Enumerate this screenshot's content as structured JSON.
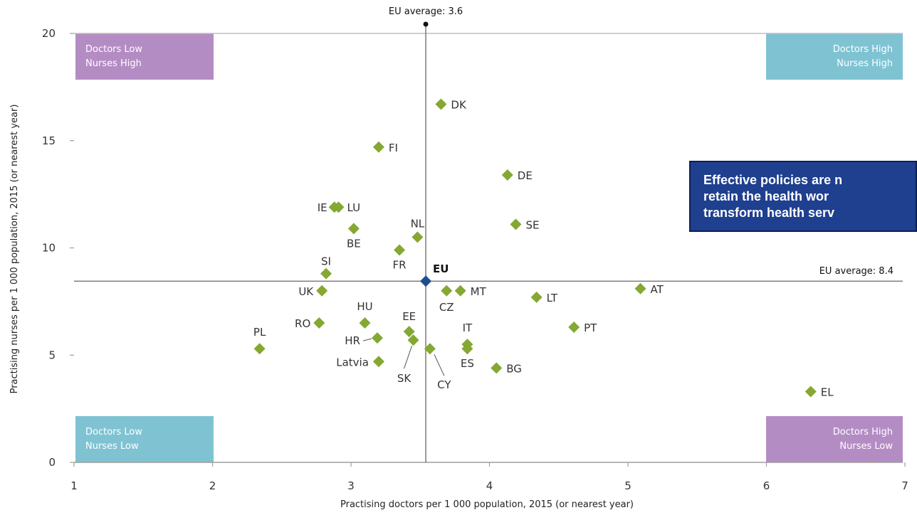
{
  "chart_data": {
    "type": "scatter",
    "xlabel": "Practising doctors per 1 000 population, 2015 (or nearest year)",
    "ylabel": "Practising nurses per 1 000 population, 2015 (or nearest year)",
    "xlim": [
      1,
      7
    ],
    "ylim": [
      0,
      20
    ],
    "x_ticks": [
      "1",
      "2",
      "3",
      "4",
      "5",
      "6",
      "7"
    ],
    "y_ticks": [
      "0",
      "5",
      "10",
      "15",
      "20"
    ],
    "grid": false,
    "eu_average_doctors": {
      "value": 3.6,
      "label": "EU average: 3.6"
    },
    "eu_average_nurses": {
      "value": 8.4,
      "label": "EU average: 8.4"
    },
    "eu_point": {
      "label": "EU",
      "x": 3.54,
      "y": 8.45,
      "color": "#1f4e8f"
    },
    "point_color": "#84a832",
    "points": [
      {
        "label": "DK",
        "x": 3.65,
        "y": 16.7
      },
      {
        "label": "FI",
        "x": 3.2,
        "y": 14.7
      },
      {
        "label": "DE",
        "x": 4.13,
        "y": 13.4
      },
      {
        "label": "IE",
        "x": 2.88,
        "y": 11.9
      },
      {
        "label": "LU",
        "x": 2.91,
        "y": 11.9
      },
      {
        "label": "SE",
        "x": 4.19,
        "y": 11.1
      },
      {
        "label": "BE",
        "x": 3.02,
        "y": 10.9
      },
      {
        "label": "NL",
        "x": 3.48,
        "y": 10.5
      },
      {
        "label": "FR",
        "x": 3.35,
        "y": 9.9
      },
      {
        "label": "SI",
        "x": 2.82,
        "y": 8.8
      },
      {
        "label": "UK",
        "x": 2.79,
        "y": 8.0
      },
      {
        "label": "CZ",
        "x": 3.69,
        "y": 8.0
      },
      {
        "label": "MT",
        "x": 3.79,
        "y": 8.0
      },
      {
        "label": "AT",
        "x": 5.09,
        "y": 8.1
      },
      {
        "label": "LT",
        "x": 4.34,
        "y": 7.7
      },
      {
        "label": "HU",
        "x": 3.1,
        "y": 6.5
      },
      {
        "label": "RO",
        "x": 2.77,
        "y": 6.5
      },
      {
        "label": "PT",
        "x": 4.61,
        "y": 6.3
      },
      {
        "label": "EE",
        "x": 3.42,
        "y": 6.1
      },
      {
        "label": "HR",
        "x": 3.19,
        "y": 5.8
      },
      {
        "label": "SK",
        "x": 3.45,
        "y": 5.7
      },
      {
        "label": "IT",
        "x": 3.84,
        "y": 5.5
      },
      {
        "label": "ES",
        "x": 3.84,
        "y": 5.3
      },
      {
        "label": "PL",
        "x": 2.34,
        "y": 5.3
      },
      {
        "label": "CY",
        "x": 3.57,
        "y": 5.3
      },
      {
        "label": "Latvia",
        "x": 3.2,
        "y": 4.7
      },
      {
        "label": "BG",
        "x": 4.05,
        "y": 4.4
      },
      {
        "label": "EL",
        "x": 6.32,
        "y": 3.3
      }
    ],
    "quadrants": [
      {
        "line1": "Doctors Low",
        "line2": "Nurses High",
        "color": "#b48cc4"
      },
      {
        "line1": "Doctors High",
        "line2": "Nurses High",
        "color": "#7fc3d3"
      },
      {
        "line1": "Doctors Low",
        "line2": "Nurses Low",
        "color": "#7fc3d3"
      },
      {
        "line1": "Doctors High",
        "line2": "Nurses Low",
        "color": "#b48cc4"
      }
    ]
  },
  "callout": {
    "line1": "Effective policies are n",
    "line2": "retain the health wor",
    "line3": "transform health serv"
  }
}
